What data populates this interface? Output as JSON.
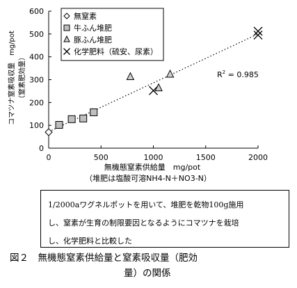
{
  "chart_data": {
    "type": "scatter",
    "xlabel_line1": "無機態窒素供給量　mg/pot",
    "xlabel_line2": "（堆肥は塩酸可溶NH4-N＋NO3-N）",
    "ylabel_line1": "コマツナ窒素吸収量　mg/pot",
    "ylabel_line2": "（窒素肥効量）",
    "xlim": [
      0,
      2000
    ],
    "ylim": [
      0,
      600
    ],
    "xticks": [
      0,
      500,
      1000,
      1500,
      2000
    ],
    "yticks": [
      0,
      100,
      200,
      300,
      400,
      500,
      600
    ],
    "r2_label": "R",
    "r2_sup": "2",
    "r2_value": " = 0.985",
    "trendline": {
      "x": [
        0,
        2000
      ],
      "y": [
        72,
        500
      ]
    },
    "legend_position": "top-left",
    "series": [
      {
        "name": "無窒素",
        "marker": "diamond",
        "points": [
          [
            0,
            70
          ]
        ]
      },
      {
        "name": "牛ふん堆肥",
        "marker": "square",
        "points": [
          [
            100,
            102
          ],
          [
            220,
            127
          ],
          [
            330,
            130
          ],
          [
            430,
            157
          ]
        ]
      },
      {
        "name": "豚ふん堆肥",
        "marker": "triangle",
        "points": [
          [
            780,
            312
          ],
          [
            1050,
            263
          ],
          [
            1160,
            323
          ]
        ]
      },
      {
        "name": "化学肥料（硫安、尿素）",
        "marker": "cross",
        "points": [
          [
            1000,
            252
          ],
          [
            2000,
            512
          ],
          [
            2000,
            495
          ]
        ]
      }
    ]
  },
  "note": {
    "lines": [
      "1/2000aワグネルポットを用いて、堆肥を乾物100g施用",
      "し、窒素が生育の制限要因となるようにコマツナを栽培",
      "し、化学肥料と比較した"
    ]
  },
  "caption": {
    "line1": "図２　無機態窒素供給量と窒素吸収量（肥効",
    "line2": "量）の関係"
  }
}
